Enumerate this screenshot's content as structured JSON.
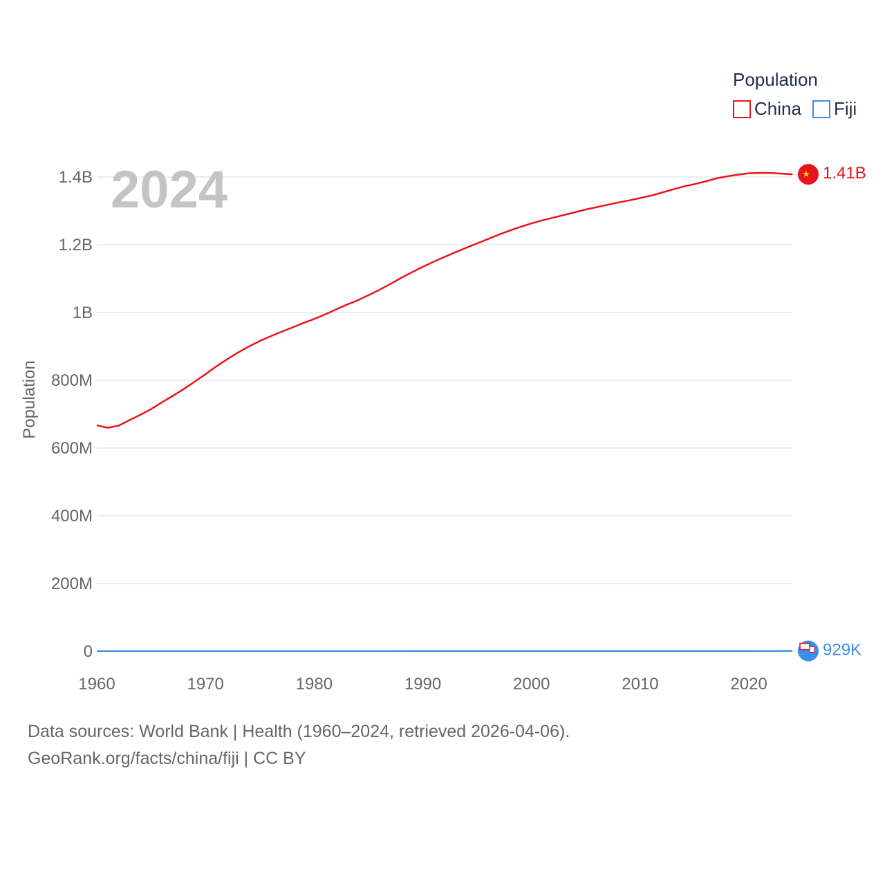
{
  "chart_data": {
    "type": "line",
    "current_year": "2024",
    "ylabel": "Population",
    "legend_title": "Population",
    "xlim": [
      1960,
      2024
    ],
    "ylim": [
      0,
      1400000000
    ],
    "x_ticks": [
      {
        "value": 1960,
        "label": "1960"
      },
      {
        "value": 1970,
        "label": "1970"
      },
      {
        "value": 1980,
        "label": "1980"
      },
      {
        "value": 1990,
        "label": "1990"
      },
      {
        "value": 2000,
        "label": "2000"
      },
      {
        "value": 2010,
        "label": "2010"
      },
      {
        "value": 2020,
        "label": "2020"
      }
    ],
    "y_ticks": [
      {
        "value": 0,
        "label": "0"
      },
      {
        "value": 200000000,
        "label": "200M"
      },
      {
        "value": 400000000,
        "label": "400M"
      },
      {
        "value": 600000000,
        "label": "600M"
      },
      {
        "value": 800000000,
        "label": "800M"
      },
      {
        "value": 1000000000,
        "label": "1B"
      },
      {
        "value": 1200000000,
        "label": "1.2B"
      },
      {
        "value": 1400000000,
        "label": "1.4B"
      }
    ],
    "series": [
      {
        "name": "China",
        "color": "#e8141b",
        "end_label": "1.41B",
        "flag_icon": "china-flag-icon",
        "points": [
          [
            1960,
            667000000
          ],
          [
            1961,
            660000000
          ],
          [
            1962,
            666000000
          ],
          [
            1963,
            682000000
          ],
          [
            1964,
            698000000
          ],
          [
            1965,
            715000000
          ],
          [
            1966,
            735000000
          ],
          [
            1967,
            754000000
          ],
          [
            1968,
            774000000
          ],
          [
            1969,
            796000000
          ],
          [
            1970,
            818000000
          ],
          [
            1971,
            841000000
          ],
          [
            1972,
            862000000
          ],
          [
            1973,
            882000000
          ],
          [
            1974,
            900000000
          ],
          [
            1975,
            916000000
          ],
          [
            1976,
            930000000
          ],
          [
            1977,
            943000000
          ],
          [
            1978,
            956000000
          ],
          [
            1979,
            969000000
          ],
          [
            1980,
            981000000
          ],
          [
            1981,
            994000000
          ],
          [
            1982,
            1009000000
          ],
          [
            1983,
            1023000000
          ],
          [
            1984,
            1036000000
          ],
          [
            1985,
            1051000000
          ],
          [
            1986,
            1067000000
          ],
          [
            1987,
            1084000000
          ],
          [
            1988,
            1102000000
          ],
          [
            1989,
            1119000000
          ],
          [
            1990,
            1135000000
          ],
          [
            1991,
            1150000000
          ],
          [
            1992,
            1164000000
          ],
          [
            1993,
            1178000000
          ],
          [
            1994,
            1191000000
          ],
          [
            1995,
            1204000000
          ],
          [
            1996,
            1217000000
          ],
          [
            1997,
            1230000000
          ],
          [
            1998,
            1242000000
          ],
          [
            1999,
            1253000000
          ],
          [
            2000,
            1263000000
          ],
          [
            2001,
            1272000000
          ],
          [
            2002,
            1280000000
          ],
          [
            2003,
            1288000000
          ],
          [
            2004,
            1296000000
          ],
          [
            2005,
            1304000000
          ],
          [
            2006,
            1311000000
          ],
          [
            2007,
            1318000000
          ],
          [
            2008,
            1325000000
          ],
          [
            2009,
            1331000000
          ],
          [
            2010,
            1338000000
          ],
          [
            2011,
            1345000000
          ],
          [
            2012,
            1354000000
          ],
          [
            2013,
            1363000000
          ],
          [
            2014,
            1372000000
          ],
          [
            2015,
            1379000000
          ],
          [
            2016,
            1387000000
          ],
          [
            2017,
            1396000000
          ],
          [
            2018,
            1402000000
          ],
          [
            2019,
            1407000000
          ],
          [
            2020,
            1411000000
          ],
          [
            2021,
            1412000000
          ],
          [
            2022,
            1412000000
          ],
          [
            2023,
            1410000000
          ],
          [
            2024,
            1408000000
          ]
        ]
      },
      {
        "name": "Fiji",
        "color": "#3d8ee6",
        "end_label": "929K",
        "flag_icon": "fiji-flag-icon",
        "points": [
          [
            1960,
            393000
          ],
          [
            1965,
            460000
          ],
          [
            1970,
            527000
          ],
          [
            1975,
            575000
          ],
          [
            1980,
            634000
          ],
          [
            1985,
            703000
          ],
          [
            1990,
            728000
          ],
          [
            1995,
            775000
          ],
          [
            2000,
            811000
          ],
          [
            2005,
            822000
          ],
          [
            2010,
            859000
          ],
          [
            2015,
            868000
          ],
          [
            2020,
            900000
          ],
          [
            2024,
            929000
          ]
        ]
      }
    ]
  },
  "footer": {
    "sources": "Data sources: World Bank | Health (1960–2024, retrieved 2026-04-06).",
    "credit": "GeoRank.org/facts/china/fiji | CC BY"
  }
}
